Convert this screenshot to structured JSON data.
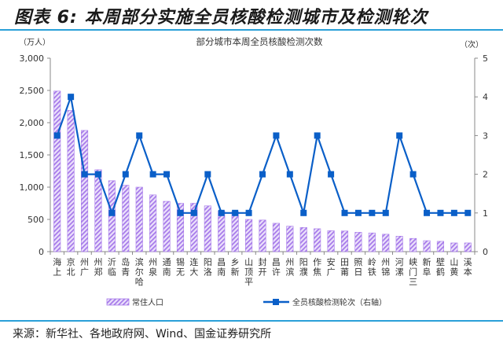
{
  "figure": {
    "title": "图表 6:  本周部分实施全员核酸检测城市及检测轮次",
    "source": "来源：新华社、各地政府网、Wind、国金证券研究所"
  },
  "colors": {
    "bar": "#a77bea",
    "bar_hatch_bg": "#e9dcfb",
    "line": "#0a5fc8",
    "axis": "#888888",
    "rule": "#2aa0d8"
  },
  "chart_data": {
    "type": "bar+line",
    "title": "部分城市本周全员核酸检测次数",
    "y_left_label": "（万人）",
    "y_right_label": "（次）",
    "y_left_ticks": [
      "0",
      "500",
      "1,000",
      "1,500",
      "2,000",
      "2,500",
      "3,000"
    ],
    "y_right_ticks": [
      "0",
      "1",
      "2",
      "3",
      "4",
      "5"
    ],
    "ylim_left": [
      0,
      3000
    ],
    "ylim_right": [
      0,
      5
    ],
    "grid": false,
    "legend_position": "bottom",
    "categories": [
      "上海",
      "北京",
      "广州",
      "郑州",
      "临沂",
      "青岛",
      "哈尔滨",
      "泉州",
      "南通",
      "无锡",
      "大连",
      "洛阳",
      "南昌",
      "新乡",
      "平顶山",
      "开封",
      "许昌",
      "滨州",
      "濮阳",
      "焦作",
      "广安",
      "莆田",
      "日照",
      "铁岭",
      "锦州",
      "漯河",
      "三门峡",
      "阜新",
      "鹤壁",
      "黄山",
      "本溪"
    ],
    "series": [
      {
        "name": "常住人口",
        "type": "bar",
        "axis": "left",
        "values": [
          2490,
          2190,
          1880,
          1270,
          1100,
          1030,
          1000,
          880,
          780,
          750,
          750,
          710,
          630,
          620,
          500,
          490,
          440,
          395,
          375,
          355,
          325,
          320,
          300,
          290,
          270,
          240,
          205,
          170,
          160,
          135,
          135
        ]
      },
      {
        "name": "全员核酸检测轮次（右轴）",
        "type": "line",
        "axis": "right",
        "values": [
          3,
          4,
          2,
          2,
          1,
          2,
          3,
          2,
          2,
          1,
          1,
          2,
          1,
          1,
          1,
          2,
          3,
          2,
          1,
          3,
          2,
          1,
          1,
          1,
          1,
          3,
          2,
          1,
          1,
          1,
          1
        ]
      }
    ]
  }
}
